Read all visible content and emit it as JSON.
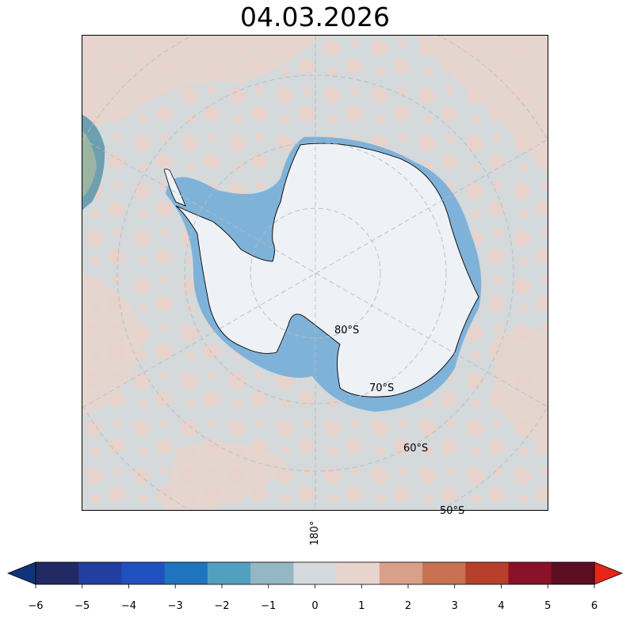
{
  "title": "04.03.2026",
  "map": {
    "projection": "south-polar-stereographic",
    "latitude_labels": [
      "80°S",
      "70°S",
      "60°S",
      "50°S"
    ],
    "longitude_label": "180°",
    "colors": {
      "ocean_near_zero": "#d4d9db",
      "warm_anomaly": "#e7d3cc",
      "sea_ice": "#7fb2d8",
      "land_ice": "#eef1f6",
      "coastline": "#000000",
      "gridline": "#b8bcc0"
    }
  },
  "colorbar": {
    "min": -6,
    "max": 6,
    "extend": "both",
    "tick_labels": [
      "−6",
      "−5",
      "−4",
      "−3",
      "−2",
      "−1",
      "0",
      "1",
      "2",
      "3",
      "4",
      "5",
      "6"
    ],
    "segment_colors": [
      "#212a62",
      "#223f9f",
      "#2150c0",
      "#1f75bd",
      "#52a0c0",
      "#95b6c3",
      "#d4d9db",
      "#e6d4cd",
      "#d8a08a",
      "#c97252",
      "#b6402c",
      "#8a1228",
      "#5c0e22"
    ],
    "under_color": "#10347a",
    "over_color": "#e42718"
  }
}
